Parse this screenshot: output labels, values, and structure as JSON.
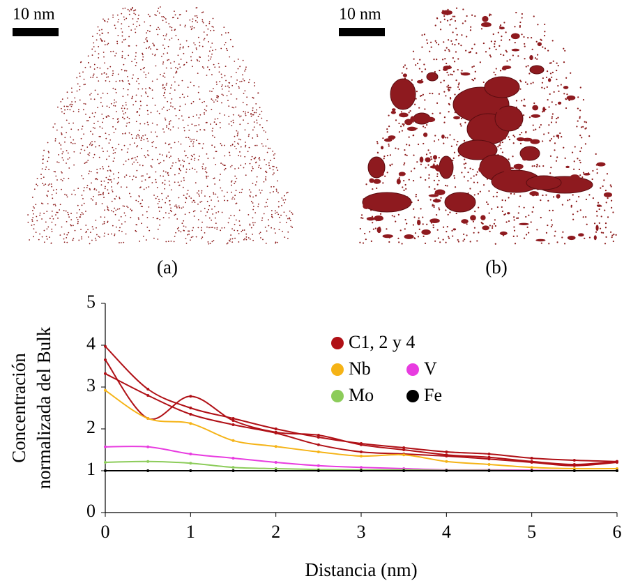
{
  "panels": [
    {
      "label": "(a)",
      "scale_bar": "10 nm"
    },
    {
      "label": "(b)",
      "scale_bar": "10 nm"
    }
  ],
  "chart_data": {
    "type": "line",
    "xlabel": "Distancia (nm)",
    "ylabel": [
      "Concentración",
      "normalizada del Bulk"
    ],
    "x": [
      0,
      0.5,
      1,
      1.5,
      2,
      2.5,
      3,
      3.5,
      4,
      4.5,
      5,
      5.5,
      6
    ],
    "xlim": [
      0,
      6
    ],
    "xticks": [
      0,
      1,
      2,
      3,
      4,
      5,
      6
    ],
    "ylim": [
      0,
      5
    ],
    "yticks": [
      0,
      1,
      2,
      3,
      4,
      5
    ],
    "series": [
      {
        "name": "C1, 2 y 4",
        "color": "#b01016",
        "values": [
          [
            3.97,
            2.95,
            2.5,
            2.25,
            2.0,
            1.8,
            1.65,
            1.55,
            1.45,
            1.4,
            1.3,
            1.25,
            1.22
          ],
          [
            3.65,
            2.25,
            2.78,
            2.2,
            1.92,
            1.85,
            1.62,
            1.5,
            1.38,
            1.32,
            1.22,
            1.15,
            1.22
          ],
          [
            3.32,
            2.8,
            2.35,
            2.1,
            1.9,
            1.62,
            1.45,
            1.4,
            1.35,
            1.28,
            1.2,
            1.12,
            1.2
          ]
        ]
      },
      {
        "name": "Nb",
        "color": "#f5b316",
        "values": [
          2.92,
          2.25,
          2.13,
          1.72,
          1.58,
          1.45,
          1.35,
          1.38,
          1.22,
          1.15,
          1.08,
          1.05,
          1.05
        ]
      },
      {
        "name": "V",
        "color": "#e83ce0",
        "values": [
          1.57,
          1.57,
          1.4,
          1.3,
          1.2,
          1.12,
          1.08,
          1.05,
          1.02,
          1.02,
          1.01,
          1.0,
          1.0
        ]
      },
      {
        "name": "Mo",
        "color": "#8ccc5a",
        "values": [
          1.2,
          1.22,
          1.18,
          1.08,
          1.05,
          1.03,
          1.02,
          1.02,
          1.01,
          1.01,
          1.0,
          1.0,
          1.0
        ]
      },
      {
        "name": "Fe",
        "color": "#000000",
        "values": [
          1.0,
          1.0,
          1.0,
          1.0,
          1.0,
          1.0,
          1.0,
          1.0,
          1.0,
          1.0,
          1.0,
          1.0,
          1.0
        ]
      }
    ]
  }
}
